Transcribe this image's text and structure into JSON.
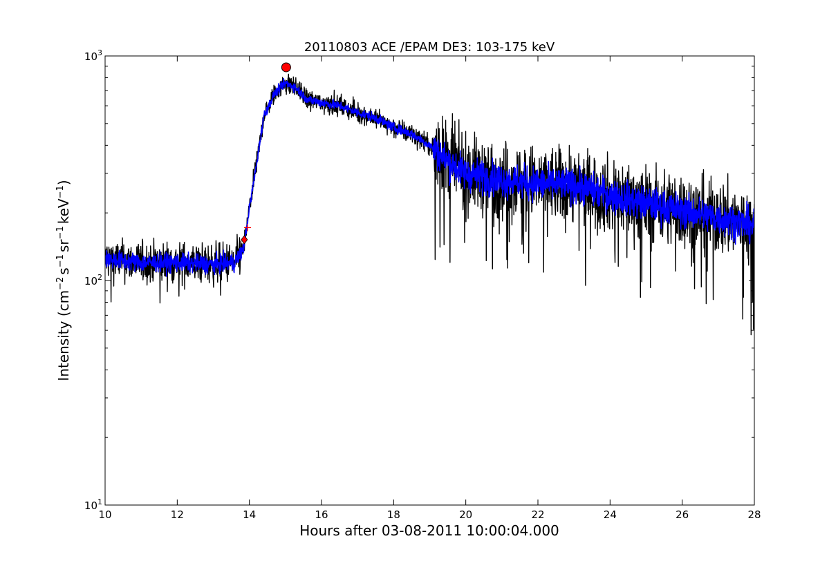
{
  "chart_data": {
    "type": "line",
    "title": "20110803 ACE /EPAM DE3: 103-175 keV",
    "xlabel": "Hours after 03-08-2011 10:00:04.000",
    "ylabel": "Intensity (cm⁻² s⁻¹ sr⁻¹ keV⁻¹)",
    "ylabel_parts": {
      "base": "Intensity (cm",
      "sup1": "−2",
      "mid1": "s",
      "sup2": "−1",
      "mid2": "sr",
      "sup3": "−1",
      "mid3": "keV",
      "sup4": "−1",
      "end": ")"
    },
    "xlim": [
      10,
      28
    ],
    "ylim": [
      10,
      1000
    ],
    "yscale": "log",
    "grid": false,
    "x_ticks": [
      10,
      12,
      14,
      16,
      18,
      20,
      22,
      24,
      26,
      28
    ],
    "x_tick_labels": [
      "10",
      "12",
      "14",
      "16",
      "18",
      "20",
      "22",
      "24",
      "26",
      "28"
    ],
    "y_ticks": [
      {
        "value": 10,
        "base": "10",
        "exp": "1"
      },
      {
        "value": 100,
        "base": "10",
        "exp": "2"
      },
      {
        "value": 1000,
        "base": "10",
        "exp": "3"
      }
    ],
    "series": [
      {
        "color": "#000000",
        "style": "noisy raw",
        "envelope": [
          [
            10.0,
            125
          ],
          [
            11.0,
            120
          ],
          [
            12.0,
            120
          ],
          [
            13.0,
            118
          ],
          [
            13.6,
            120
          ],
          [
            13.85,
            140
          ],
          [
            14.0,
            210
          ],
          [
            14.2,
            330
          ],
          [
            14.4,
            540
          ],
          [
            14.7,
            680
          ],
          [
            15.0,
            760
          ],
          [
            15.3,
            720
          ],
          [
            15.6,
            640
          ],
          [
            16.0,
            620
          ],
          [
            16.5,
            600
          ],
          [
            17.0,
            560
          ],
          [
            17.5,
            530
          ],
          [
            18.0,
            480
          ],
          [
            18.5,
            450
          ],
          [
            19.0,
            400
          ],
          [
            19.5,
            340
          ],
          [
            20.0,
            300
          ],
          [
            21.0,
            280
          ],
          [
            22.0,
            270
          ],
          [
            23.0,
            265
          ],
          [
            24.0,
            240
          ],
          [
            25.0,
            220
          ],
          [
            26.0,
            205
          ],
          [
            27.0,
            190
          ],
          [
            28.0,
            175
          ]
        ]
      },
      {
        "color": "#0000ff",
        "style": "smoothed",
        "envelope": [
          [
            10.0,
            125
          ],
          [
            11.0,
            120
          ],
          [
            12.0,
            120
          ],
          [
            13.0,
            118
          ],
          [
            13.6,
            120
          ],
          [
            13.85,
            140
          ],
          [
            14.0,
            210
          ],
          [
            14.2,
            330
          ],
          [
            14.4,
            540
          ],
          [
            14.7,
            680
          ],
          [
            15.0,
            760
          ],
          [
            15.3,
            720
          ],
          [
            15.6,
            640
          ],
          [
            16.0,
            620
          ],
          [
            16.5,
            600
          ],
          [
            17.0,
            560
          ],
          [
            17.5,
            530
          ],
          [
            18.0,
            480
          ],
          [
            18.5,
            450
          ],
          [
            19.0,
            400
          ],
          [
            19.5,
            340
          ],
          [
            20.0,
            300
          ],
          [
            21.0,
            280
          ],
          [
            22.0,
            270
          ],
          [
            23.0,
            265
          ],
          [
            24.0,
            240
          ],
          [
            25.0,
            220
          ],
          [
            26.0,
            205
          ],
          [
            27.0,
            190
          ],
          [
            28.0,
            175
          ]
        ]
      }
    ],
    "markers": [
      {
        "type": "circle",
        "color": "#ff0000",
        "x": 15.02,
        "y": 890
      },
      {
        "type": "diamond",
        "color": "#ff0000",
        "x": 13.86,
        "y": 152
      },
      {
        "type": "plus",
        "color": "#ff0000",
        "x": 13.95,
        "y": 172
      }
    ]
  }
}
